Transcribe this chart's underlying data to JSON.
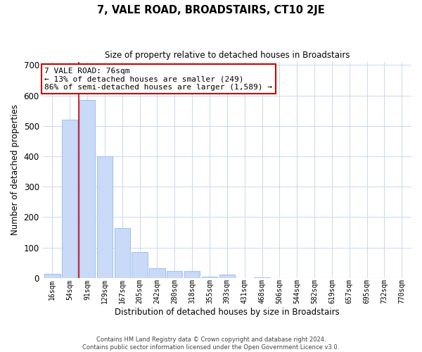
{
  "title": "7, VALE ROAD, BROADSTAIRS, CT10 2JE",
  "subtitle": "Size of property relative to detached houses in Broadstairs",
  "xlabel": "Distribution of detached houses by size in Broadstairs",
  "ylabel": "Number of detached properties",
  "bar_labels": [
    "16sqm",
    "54sqm",
    "91sqm",
    "129sqm",
    "167sqm",
    "205sqm",
    "242sqm",
    "280sqm",
    "318sqm",
    "355sqm",
    "393sqm",
    "431sqm",
    "468sqm",
    "506sqm",
    "544sqm",
    "582sqm",
    "619sqm",
    "657sqm",
    "695sqm",
    "732sqm",
    "770sqm"
  ],
  "bar_values": [
    13,
    520,
    585,
    400,
    163,
    85,
    33,
    22,
    23,
    5,
    12,
    0,
    3,
    0,
    0,
    0,
    0,
    0,
    0,
    0,
    0
  ],
  "bar_color": "#c9daf8",
  "bar_edge_color": "#a4c2f4",
  "vline_x": 1.5,
  "vline_color": "#cc0000",
  "annotation_text": "7 VALE ROAD: 76sqm\n← 13% of detached houses are smaller (249)\n86% of semi-detached houses are larger (1,589) →",
  "annotation_box_color": "#ffffff",
  "annotation_box_edge": "#cc0000",
  "ylim": [
    0,
    710
  ],
  "yticks": [
    0,
    100,
    200,
    300,
    400,
    500,
    600,
    700
  ],
  "footer_line1": "Contains HM Land Registry data © Crown copyright and database right 2024.",
  "footer_line2": "Contains public sector information licensed under the Open Government Licence v3.0.",
  "bg_color": "#ffffff",
  "grid_color": "#c9d8f0"
}
